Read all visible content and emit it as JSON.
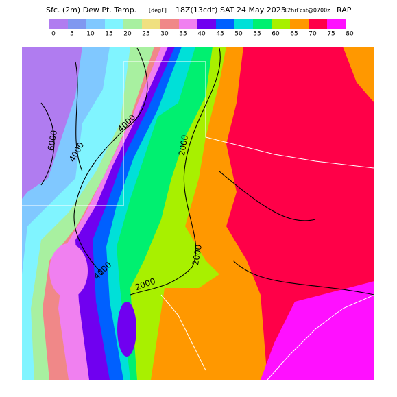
{
  "header": {
    "title": "Sfc. (2m) Dew Pt. Temp.",
    "units": "[degF]",
    "valid": "18Z(13cdt) SAT 24 May 2025",
    "forecast": "12hrFcst@0700z",
    "model": "RAP"
  },
  "legend": {
    "colors": [
      "#b07cf0",
      "#8098f0",
      "#80c8ff",
      "#80f4ff",
      "#a8f0a0",
      "#f0e080",
      "#f08888",
      "#f080f0",
      "#7000f0",
      "#0060ff",
      "#00e0d8",
      "#00f070",
      "#a8f000",
      "#ff9800",
      "#ff0048",
      "#ff10ff"
    ],
    "labels": [
      0,
      5,
      10,
      15,
      20,
      25,
      30,
      35,
      40,
      45,
      50,
      55,
      60,
      65,
      70,
      75,
      80
    ]
  },
  "contours": {
    "labels": [
      "6000",
      "4000",
      "4000",
      "2000",
      "2000",
      "4000",
      "2000"
    ]
  }
}
